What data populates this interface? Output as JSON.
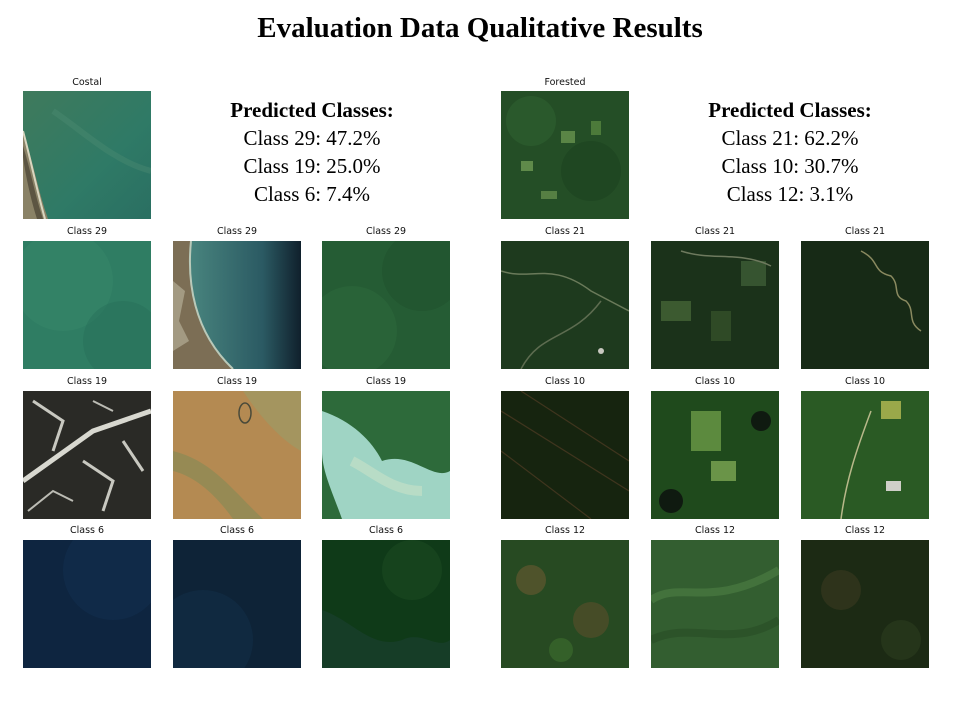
{
  "title": "Evaluation Data Qualitative Results",
  "panels": [
    {
      "query": {
        "label": "Costal",
        "icon": "coastal-satellite-image"
      },
      "predicted": {
        "heading": "Predicted Classes:",
        "lines": [
          "Class 29: 47.2%",
          "Class 19: 25.0%",
          "Class 6: 7.4%"
        ]
      },
      "rows": [
        {
          "label": "Class 29",
          "tiles": [
            "teal-sea",
            "coast-wave",
            "green-sea"
          ]
        },
        {
          "label": "Class 19",
          "tiles": [
            "rocky-snow",
            "brown-water",
            "turquoise-lake"
          ]
        },
        {
          "label": "Class 6",
          "tiles": [
            "dark-blue-sea",
            "dark-navy-sea",
            "dark-green-lake"
          ]
        }
      ]
    },
    {
      "query": {
        "label": "Forested",
        "icon": "forest-satellite-image"
      },
      "predicted": {
        "heading": "Predicted Classes:",
        "lines": [
          "Class 21: 62.2%",
          "Class 10: 30.7%",
          "Class 12: 3.1%"
        ]
      },
      "rows": [
        {
          "label": "Class 21",
          "tiles": [
            "forest-roads",
            "forest-fields",
            "forest-river"
          ]
        },
        {
          "label": "Class 10",
          "tiles": [
            "dark-forest",
            "forest-clearings",
            "forest-road"
          ]
        },
        {
          "label": "Class 12",
          "tiles": [
            "mixed-forest",
            "forest-hills",
            "dark-mixed-forest"
          ]
        }
      ]
    }
  ]
}
